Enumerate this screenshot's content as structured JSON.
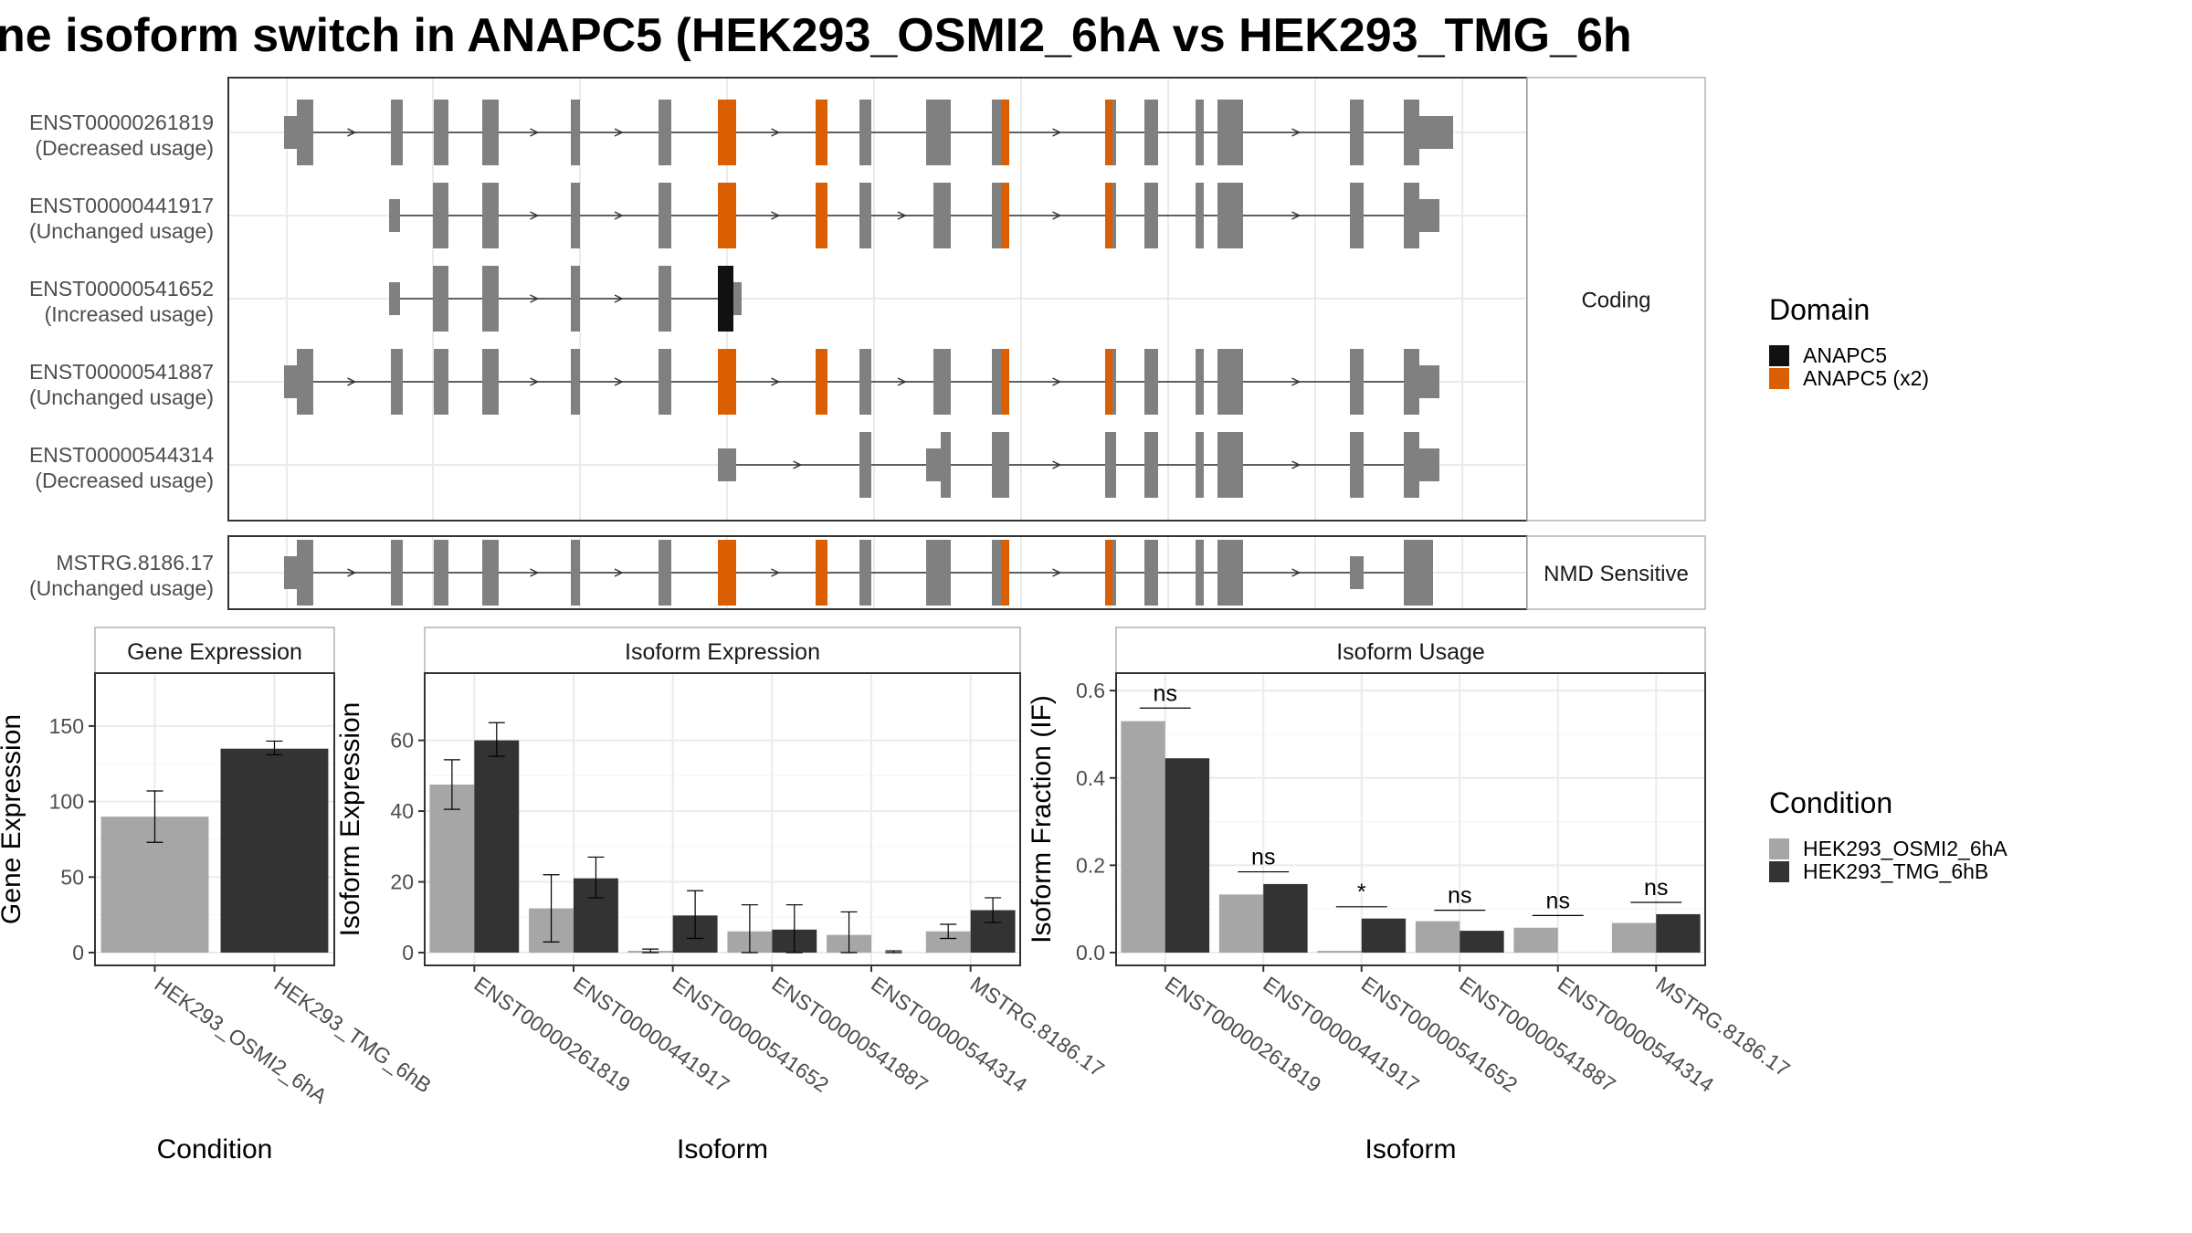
{
  "title": "ne isoform switch in ANAPC5 (HEK293_OSMI2_6hA vs HEK293_TMG_6h",
  "colors": {
    "exon": "#808080",
    "domain_single": "#111111",
    "domain_double": "#d95f02",
    "cond_a": "#a6a6a6",
    "cond_b": "#333333",
    "grid": "#ebebeb",
    "frame": "#333333",
    "strip_border": "#b3b3b3"
  },
  "structure": {
    "facets": [
      "Coding",
      "NMD Sensitive"
    ],
    "transcripts": [
      {
        "id": "ENST00000261819",
        "usage": "(Decreased usage)",
        "facet": "Coding",
        "exons": [
          [
            311,
            343,
            "n"
          ],
          [
            428,
            441,
            "n"
          ],
          [
            475,
            491,
            "n"
          ],
          [
            528,
            546,
            "n"
          ],
          [
            625,
            635,
            "n"
          ],
          [
            721,
            735,
            "n"
          ],
          [
            786,
            806,
            "d"
          ],
          [
            893,
            906,
            "d"
          ],
          [
            941,
            954,
            "n"
          ],
          [
            1014,
            1041,
            "n"
          ],
          [
            1086,
            1096,
            "n"
          ],
          [
            1096,
            1105,
            "d"
          ],
          [
            1210,
            1218,
            "d"
          ],
          [
            1218,
            1222,
            "n"
          ],
          [
            1253,
            1268,
            "n"
          ],
          [
            1309,
            1318,
            "n"
          ],
          [
            1333,
            1361,
            "n"
          ],
          [
            1478,
            1493,
            "n"
          ],
          [
            1537,
            1554,
            "n"
          ],
          [
            1554,
            1591,
            "n"
          ]
        ]
      },
      {
        "id": "ENST00000441917",
        "usage": "(Unchanged usage)",
        "facet": "Coding",
        "exons": [
          [
            426,
            438,
            "n"
          ],
          [
            474,
            491,
            "n"
          ],
          [
            528,
            546,
            "n"
          ],
          [
            625,
            635,
            "n"
          ],
          [
            721,
            735,
            "n"
          ],
          [
            786,
            806,
            "d"
          ],
          [
            893,
            906,
            "d"
          ],
          [
            941,
            954,
            "n"
          ],
          [
            1022,
            1041,
            "n"
          ],
          [
            1086,
            1096,
            "n"
          ],
          [
            1096,
            1105,
            "d"
          ],
          [
            1210,
            1218,
            "d"
          ],
          [
            1218,
            1222,
            "n"
          ],
          [
            1253,
            1268,
            "n"
          ],
          [
            1309,
            1318,
            "n"
          ],
          [
            1333,
            1361,
            "n"
          ],
          [
            1478,
            1493,
            "n"
          ],
          [
            1537,
            1554,
            "n"
          ],
          [
            1554,
            1576,
            "n"
          ]
        ]
      },
      {
        "id": "ENST00000541652",
        "usage": "(Increased usage)",
        "facet": "Coding",
        "exons": [
          [
            426,
            438,
            "n"
          ],
          [
            474,
            491,
            "n"
          ],
          [
            528,
            546,
            "n"
          ],
          [
            625,
            635,
            "n"
          ],
          [
            721,
            735,
            "n"
          ],
          [
            786,
            803,
            "s"
          ],
          [
            803,
            812,
            "n"
          ]
        ]
      },
      {
        "id": "ENST00000541887",
        "usage": "(Unchanged usage)",
        "facet": "Coding",
        "exons": [
          [
            311,
            343,
            "n"
          ],
          [
            428,
            441,
            "n"
          ],
          [
            475,
            491,
            "n"
          ],
          [
            528,
            546,
            "n"
          ],
          [
            625,
            635,
            "n"
          ],
          [
            721,
            735,
            "n"
          ],
          [
            786,
            806,
            "d"
          ],
          [
            893,
            906,
            "d"
          ],
          [
            941,
            954,
            "n"
          ],
          [
            1022,
            1041,
            "n"
          ],
          [
            1086,
            1096,
            "n"
          ],
          [
            1096,
            1105,
            "d"
          ],
          [
            1210,
            1218,
            "d"
          ],
          [
            1218,
            1222,
            "n"
          ],
          [
            1253,
            1268,
            "n"
          ],
          [
            1309,
            1318,
            "n"
          ],
          [
            1333,
            1361,
            "n"
          ],
          [
            1478,
            1493,
            "n"
          ],
          [
            1537,
            1554,
            "n"
          ],
          [
            1554,
            1576,
            "n"
          ]
        ]
      },
      {
        "id": "ENST00000544314",
        "usage": "(Decreased usage)",
        "facet": "Coding",
        "exons": [
          [
            786,
            806,
            "n"
          ],
          [
            941,
            954,
            "n"
          ],
          [
            1014,
            1041,
            "n"
          ],
          [
            1086,
            1105,
            "n"
          ],
          [
            1210,
            1222,
            "n"
          ],
          [
            1253,
            1268,
            "n"
          ],
          [
            1309,
            1318,
            "n"
          ],
          [
            1333,
            1361,
            "n"
          ],
          [
            1478,
            1493,
            "n"
          ],
          [
            1537,
            1554,
            "n"
          ],
          [
            1554,
            1576,
            "n"
          ]
        ]
      },
      {
        "id": "MSTRG.8186.17",
        "usage": "(Unchanged usage)",
        "facet": "NMD Sensitive",
        "exons": [
          [
            311,
            343,
            "n"
          ],
          [
            428,
            441,
            "n"
          ],
          [
            475,
            491,
            "n"
          ],
          [
            528,
            546,
            "n"
          ],
          [
            625,
            635,
            "n"
          ],
          [
            721,
            735,
            "n"
          ],
          [
            786,
            806,
            "d"
          ],
          [
            893,
            906,
            "d"
          ],
          [
            941,
            954,
            "n"
          ],
          [
            1014,
            1041,
            "n"
          ],
          [
            1086,
            1096,
            "n"
          ],
          [
            1096,
            1105,
            "d"
          ],
          [
            1210,
            1218,
            "d"
          ],
          [
            1218,
            1222,
            "n"
          ],
          [
            1253,
            1268,
            "n"
          ],
          [
            1309,
            1318,
            "n"
          ],
          [
            1333,
            1361,
            "n"
          ],
          [
            1348,
            1361,
            "n"
          ],
          [
            1478,
            1493,
            "n"
          ],
          [
            1537,
            1569,
            "n"
          ]
        ]
      }
    ]
  },
  "legend_domain": {
    "title": "Domain",
    "items": [
      {
        "label": "ANAPC5",
        "color": "#111111"
      },
      {
        "label": "ANAPC5 (x2)",
        "color": "#d95f02"
      }
    ]
  },
  "legend_condition": {
    "title": "Condition",
    "items": [
      {
        "label": "HEK293_OSMI2_6hA",
        "color": "#a6a6a6"
      },
      {
        "label": "HEK293_TMG_6hB",
        "color": "#333333"
      }
    ]
  },
  "chart_data": [
    {
      "type": "bar",
      "strip": "Gene Expression",
      "xlabel": "Condition",
      "ylabel": "Gene Expression",
      "ylim": [
        0,
        185
      ],
      "yticks": [
        0,
        50,
        100,
        150
      ],
      "categories": [
        "HEK293_OSMI2_6hA",
        "HEK293_TMG_6hB"
      ],
      "values": [
        90,
        135
      ],
      "errors": [
        [
          73,
          107
        ],
        [
          131,
          140
        ]
      ]
    },
    {
      "type": "bar",
      "strip": "Isoform Expression",
      "xlabel": "Isoform",
      "ylabel": "Isoform Expression",
      "ylim": [
        0,
        79
      ],
      "yticks": [
        0,
        20,
        40,
        60
      ],
      "categories": [
        "ENST00000261819",
        "ENST00000441917",
        "ENST00000541652",
        "ENST00000541887",
        "ENST00000544314",
        "MSTRG.8186.17"
      ],
      "series": [
        {
          "name": "HEK293_OSMI2_6hA",
          "values": [
            47.5,
            12.5,
            0.5,
            6,
            5,
            6
          ],
          "errors": [
            [
              40.5,
              54.5
            ],
            [
              3,
              22
            ],
            [
              0,
              1
            ],
            [
              0,
              13.5
            ],
            [
              0,
              11.5
            ],
            [
              4,
              8
            ]
          ]
        },
        {
          "name": "HEK293_TMG_6hB",
          "values": [
            60,
            21,
            10.5,
            6.5,
            0,
            12
          ],
          "errors": [
            [
              55.5,
              65
            ],
            [
              15.5,
              27
            ],
            [
              4,
              17.5
            ],
            [
              0,
              13.5
            ],
            [
              0,
              0.5
            ],
            [
              8.5,
              15.5
            ]
          ]
        }
      ]
    },
    {
      "type": "bar",
      "strip": "Isoform Usage",
      "xlabel": "Isoform",
      "ylabel": "Isoform Fraction (IF)",
      "ylim": [
        0,
        0.64
      ],
      "yticks": [
        "0.0",
        "0.2",
        "0.4",
        "0.6"
      ],
      "categories": [
        "ENST00000261819",
        "ENST00000441917",
        "ENST00000541652",
        "ENST00000541887",
        "ENST00000544314",
        "MSTRG.8186.17"
      ],
      "series": [
        {
          "name": "HEK293_OSMI2_6hA",
          "values": [
            0.53,
            0.133,
            0.004,
            0.072,
            0.057,
            0.068
          ]
        },
        {
          "name": "HEK293_TMG_6hB",
          "values": [
            0.445,
            0.157,
            0.078,
            0.05,
            0.0,
            0.088
          ]
        }
      ],
      "significance": [
        {
          "label": "ns",
          "y": 0.56
        },
        {
          "label": "ns",
          "y": 0.185
        },
        {
          "label": "*",
          "y": 0.105
        },
        {
          "label": "ns",
          "y": 0.097
        },
        {
          "label": "ns",
          "y": 0.085
        },
        {
          "label": "ns",
          "y": 0.115
        }
      ]
    }
  ]
}
